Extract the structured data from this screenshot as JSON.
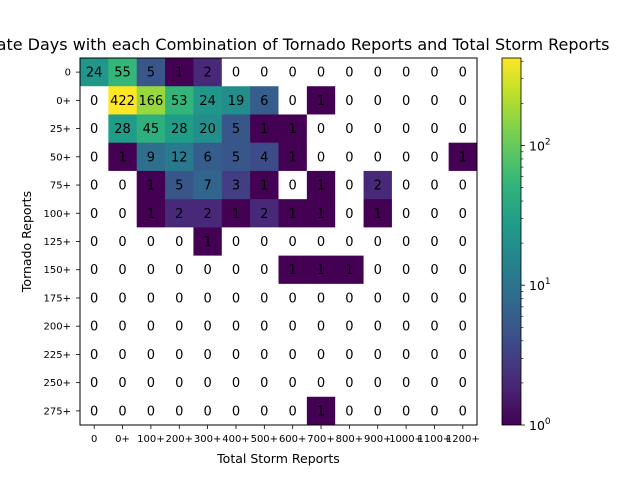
{
  "chart_data": {
    "type": "heatmap",
    "title": "Moderate Days with each Combination of Tornado Reports and Total Storm Reports",
    "xlabel": "Total Storm Reports",
    "ylabel": "Tornado Reports",
    "x_categories": [
      "0",
      "0+",
      "100+",
      "200+",
      "300+",
      "400+",
      "500+",
      "600+",
      "700+",
      "800+",
      "900+",
      "1000+",
      "1100+",
      "1200+"
    ],
    "y_categories": [
      "0",
      "0+",
      "25+",
      "50+",
      "75+",
      "100+",
      "125+",
      "150+",
      "175+",
      "200+",
      "225+",
      "250+",
      "275+"
    ],
    "values": [
      [
        24,
        55,
        5,
        1,
        2,
        0,
        0,
        0,
        0,
        0,
        0,
        0,
        0,
        0
      ],
      [
        0,
        422,
        166,
        53,
        24,
        19,
        6,
        0,
        1,
        0,
        0,
        0,
        0,
        0
      ],
      [
        0,
        28,
        45,
        28,
        20,
        5,
        1,
        1,
        0,
        0,
        0,
        0,
        0,
        0
      ],
      [
        0,
        1,
        9,
        12,
        6,
        5,
        4,
        1,
        0,
        0,
        0,
        0,
        0,
        1
      ],
      [
        0,
        0,
        1,
        5,
        7,
        3,
        1,
        0,
        1,
        0,
        2,
        0,
        0,
        0
      ],
      [
        0,
        0,
        1,
        2,
        2,
        1,
        2,
        1,
        1,
        0,
        1,
        0,
        0,
        0
      ],
      [
        0,
        0,
        0,
        0,
        1,
        0,
        0,
        0,
        0,
        0,
        0,
        0,
        0,
        0
      ],
      [
        0,
        0,
        0,
        0,
        0,
        0,
        0,
        1,
        1,
        1,
        0,
        0,
        0,
        0
      ],
      [
        0,
        0,
        0,
        0,
        0,
        0,
        0,
        0,
        0,
        0,
        0,
        0,
        0,
        0
      ],
      [
        0,
        0,
        0,
        0,
        0,
        0,
        0,
        0,
        0,
        0,
        0,
        0,
        0,
        0
      ],
      [
        0,
        0,
        0,
        0,
        0,
        0,
        0,
        0,
        0,
        0,
        0,
        0,
        0,
        0
      ],
      [
        0,
        0,
        0,
        0,
        0,
        0,
        0,
        0,
        0,
        0,
        0,
        0,
        0,
        0
      ],
      [
        0,
        0,
        0,
        0,
        0,
        0,
        0,
        0,
        1,
        0,
        0,
        0,
        0,
        0
      ]
    ],
    "colorbar": {
      "scale": "log",
      "colormap": "viridis",
      "range": [
        1,
        422
      ],
      "ticks": [
        {
          "value": 1,
          "label": "10^0"
        },
        {
          "value": 10,
          "label": "10^1"
        },
        {
          "value": 100,
          "label": "10^2"
        }
      ]
    },
    "zero_color": "#ffffff",
    "grid": false
  }
}
